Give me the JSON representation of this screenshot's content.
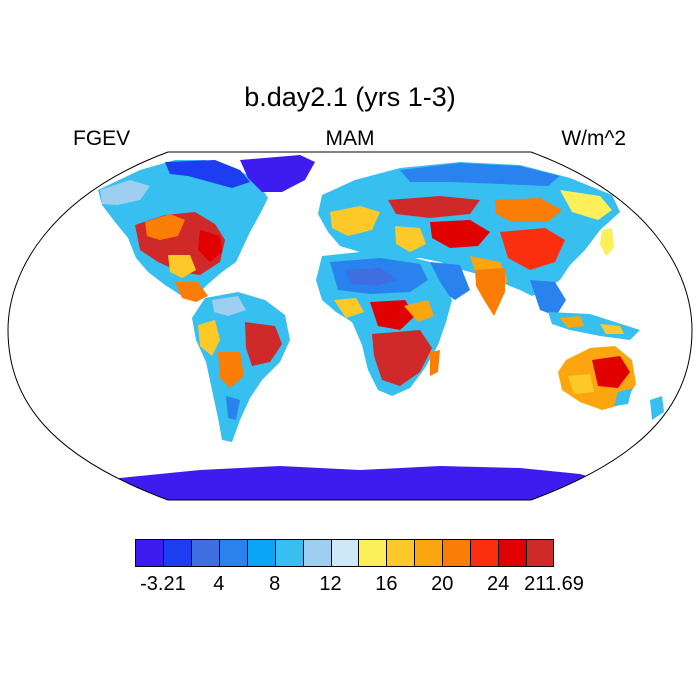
{
  "title": "b.day2.1 (yrs 1-3)",
  "left_label": "FGEV",
  "center_label": "MAM",
  "right_label": "W/m^2",
  "colorbar": {
    "colors": [
      "#3e1cf0",
      "#1c3ef0",
      "#3e6ee0",
      "#2a82ef",
      "#0aa6f5",
      "#37bff0",
      "#9ecff0",
      "#cfe8f8",
      "#fbef5a",
      "#fcc928",
      "#fba60f",
      "#fa7d06",
      "#fb2e0f",
      "#e00000",
      "#d0292a"
    ],
    "labels": [
      {
        "text": "-3.21",
        "after_box": 0
      },
      {
        "text": "4",
        "after_box": 2
      },
      {
        "text": "8",
        "after_box": 4
      },
      {
        "text": "12",
        "after_box": 6
      },
      {
        "text": "16",
        "after_box": 8
      },
      {
        "text": "20",
        "after_box": 10
      },
      {
        "text": "24",
        "after_box": 12
      },
      {
        "text": "211.69",
        "after_box": 14
      }
    ]
  }
}
